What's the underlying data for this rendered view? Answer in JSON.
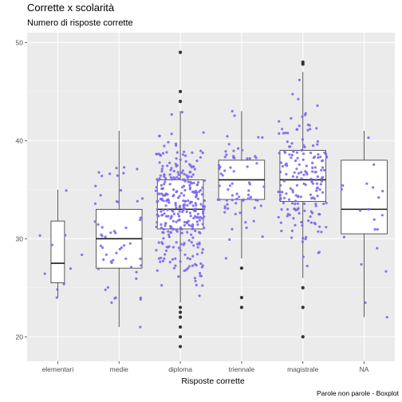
{
  "chart_data": {
    "type": "boxplot",
    "title": "Corrette x scolarità",
    "subtitle": "Numero di risposte corrette",
    "xlabel": "Risposte corrette",
    "ylabel": "",
    "caption": "Parole non parole - Boxplot",
    "ylim": [
      17.5,
      51
    ],
    "yticks": [
      20,
      30,
      40,
      50
    ],
    "grid": true,
    "jitter_color": "#7b68ee",
    "outlier_color": "#333333",
    "panel_color": "#ebebeb",
    "categories": [
      "elementari",
      "medie",
      "diploma",
      "triennale",
      "magistrale",
      "NA"
    ],
    "boxes": [
      {
        "q1": 25.5,
        "median": 27.5,
        "q3": 31.8,
        "whisker_low": 24.0,
        "whisker_high": 35.0,
        "outliers": []
      },
      {
        "q1": 27.0,
        "median": 30.0,
        "q3": 33.0,
        "whisker_low": 21.0,
        "whisker_high": 41.0,
        "outliers": []
      },
      {
        "q1": 31.0,
        "median": 33.0,
        "q3": 36.0,
        "whisker_low": 23.5,
        "whisker_high": 43.0,
        "outliers": [
          19,
          20,
          21,
          22,
          22.5,
          23,
          44,
          45,
          49
        ]
      },
      {
        "q1": 34.0,
        "median": 36.0,
        "q3": 38.0,
        "whisker_low": 28.0,
        "whisker_high": 43.0,
        "outliers": [
          23,
          24,
          27
        ]
      },
      {
        "q1": 33.8,
        "median": 36.0,
        "q3": 39.0,
        "whisker_low": 26.0,
        "whisker_high": 47.0,
        "outliers": [
          20,
          23,
          25,
          47.8,
          48
        ]
      },
      {
        "q1": 30.5,
        "median": 33.0,
        "q3": 38.0,
        "whisker_low": 22.0,
        "whisker_high": 41.0,
        "outliers": []
      }
    ],
    "point_counts": [
      10,
      55,
      330,
      70,
      180,
      20
    ]
  }
}
